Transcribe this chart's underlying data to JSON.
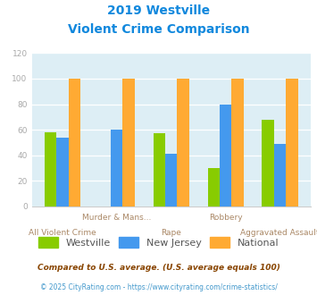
{
  "title_line1": "2019 Westville",
  "title_line2": "Violent Crime Comparison",
  "categories_top": [
    "",
    "Murder & Mans...",
    "",
    "Robbery",
    ""
  ],
  "categories_bot": [
    "All Violent Crime",
    "",
    "Rape",
    "",
    "Aggravated Assault"
  ],
  "westville": [
    58,
    0,
    57,
    30,
    68
  ],
  "new_jersey": [
    54,
    60,
    41,
    80,
    49
  ],
  "national": [
    100,
    100,
    100,
    100,
    100
  ],
  "color_westville": "#88cc00",
  "color_nj": "#4499ee",
  "color_national": "#ffaa33",
  "ylim": [
    0,
    120
  ],
  "yticks": [
    0,
    20,
    40,
    60,
    80,
    100,
    120
  ],
  "legend_labels": [
    "Westville",
    "New Jersey",
    "National"
  ],
  "footnote1": "Compared to U.S. average. (U.S. average equals 100)",
  "footnote2": "© 2025 CityRating.com - https://www.cityrating.com/crime-statistics/",
  "title_color": "#1188dd",
  "footnote1_color": "#884400",
  "footnote2_color": "#4499cc",
  "xtick_color": "#aa8866",
  "ytick_color": "#aaaaaa",
  "bg_color": "#ddeef5",
  "bar_width": 0.22
}
